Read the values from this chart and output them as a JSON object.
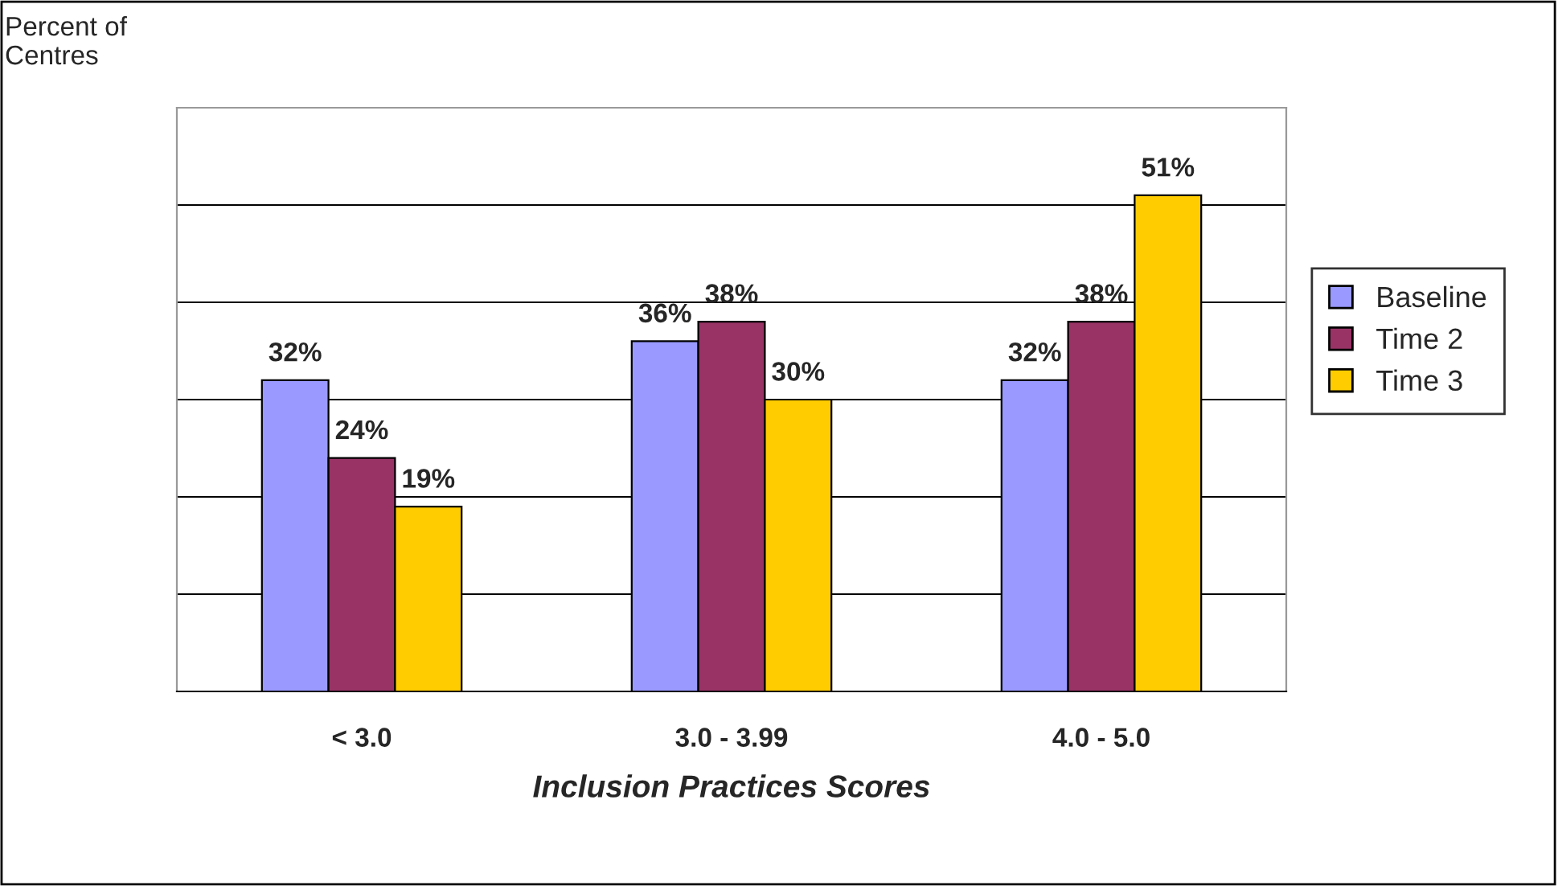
{
  "chart_data": {
    "type": "bar",
    "ylabel": "Percent of\nCentres",
    "xlabel": "Inclusion Practices Scores",
    "categories": [
      "< 3.0",
      "3.0 - 3.99",
      "4.0 - 5.0"
    ],
    "series": [
      {
        "name": "Baseline",
        "color": "#9999ff",
        "values": [
          32,
          36,
          32
        ],
        "value_labels": [
          "32%",
          "36%",
          "32%"
        ]
      },
      {
        "name": "Time 2",
        "color": "#993366",
        "values": [
          24,
          38,
          38
        ],
        "value_labels": [
          "24%",
          "38%",
          "38%"
        ]
      },
      {
        "name": "Time 3",
        "color": "#ffcc00",
        "values": [
          19,
          30,
          51
        ],
        "value_labels": [
          "19%",
          "30%",
          "51%"
        ]
      }
    ],
    "ylim": [
      0,
      60
    ],
    "yticks": [
      {
        "value": 0,
        "label": null
      },
      {
        "value": 10,
        "label": null
      },
      {
        "value": 20,
        "label": null
      },
      {
        "value": 30,
        "label": null
      },
      {
        "value": 40,
        "label": null
      },
      {
        "value": 50,
        "label": null
      },
      {
        "value": 60,
        "label": null
      }
    ],
    "grid": "y",
    "tick_labels": "x",
    "legend": "right"
  }
}
